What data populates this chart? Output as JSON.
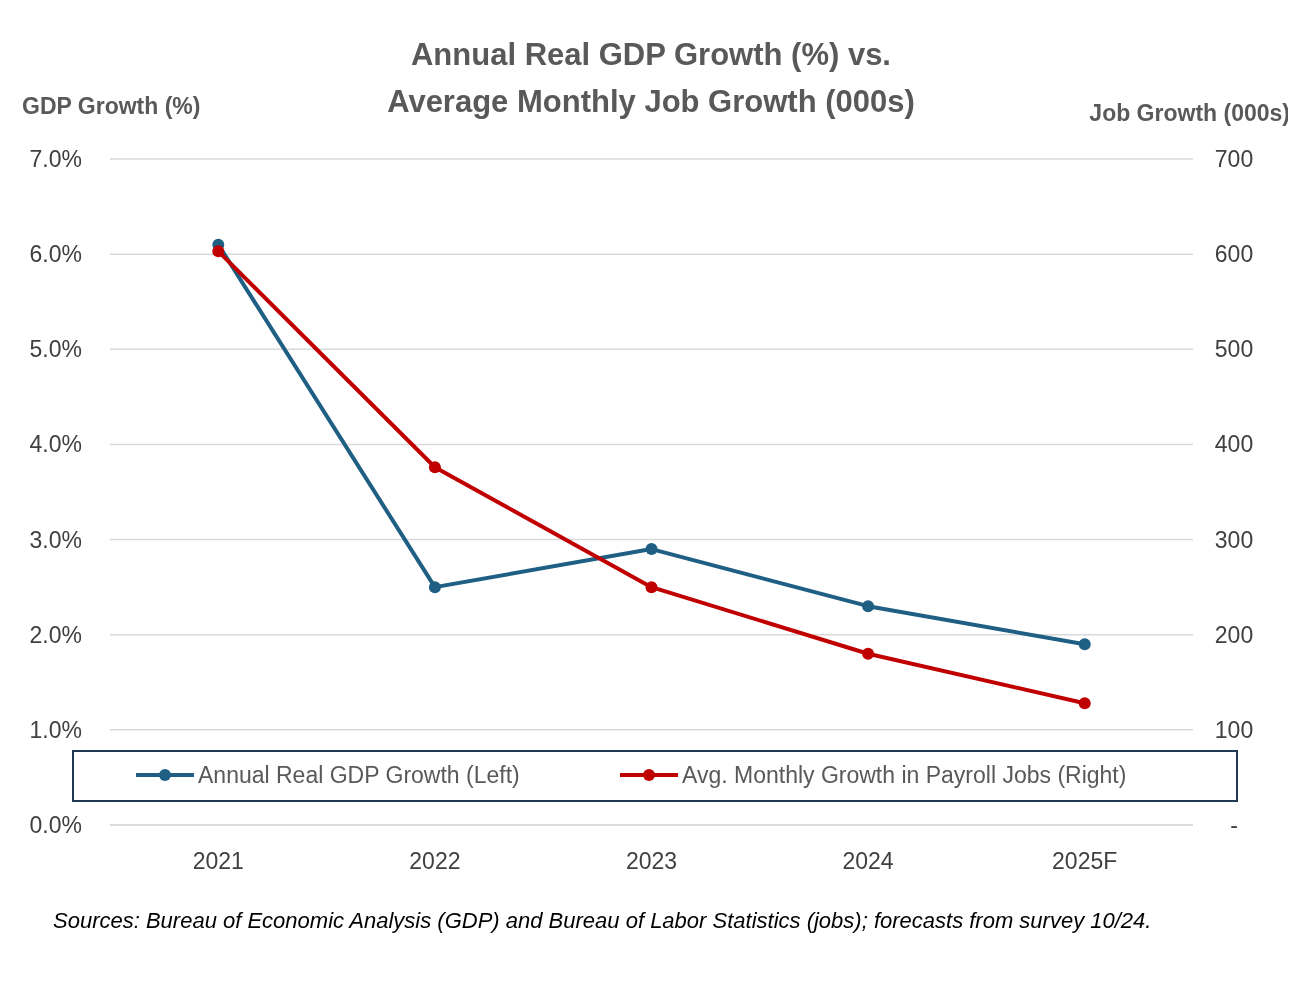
{
  "chart_data": {
    "type": "line",
    "title": "Annual Real GDP Growth (%) vs. Average Monthly Job Growth (000s)",
    "ylabel": "GDP Growth (%)",
    "y2label": "Job Growth (000s)",
    "categories": [
      "2021",
      "2022",
      "2023",
      "2024",
      "2025F"
    ],
    "series": [
      {
        "name": "Annual Real GDP Growth (Left)",
        "color": "#1f5f84",
        "values": [
          6.1,
          2.5,
          2.9,
          2.3,
          1.9
        ]
      },
      {
        "name": "Avg. Monthly Growth in Payroll Jobs (Right)",
        "color": "#c00000",
        "axis": "y2",
        "values": [
          603,
          376,
          250,
          180,
          128
        ]
      }
    ],
    "ylim": [
      0,
      7
    ],
    "yticks": [
      {
        "value": 0,
        "label": "0.0%"
      },
      {
        "value": 1,
        "label": "1.0%"
      },
      {
        "value": 2,
        "label": "2.0%"
      },
      {
        "value": 3,
        "label": "3.0%"
      },
      {
        "value": 4,
        "label": "4.0%"
      },
      {
        "value": 5,
        "label": "5.0%"
      },
      {
        "value": 6,
        "label": "6.0%"
      },
      {
        "value": 7,
        "label": "7.0%"
      }
    ],
    "y2lim": [
      0,
      700
    ],
    "y2ticks": [
      {
        "value": 0,
        "label": "-"
      },
      100,
      200,
      300,
      400,
      500,
      600,
      700
    ],
    "grid": "y",
    "legend": "bottom",
    "marker": "circle",
    "line_style": "solid",
    "annotations": [
      "Sources: Bureau of Economic Analysis (GDP) and Bureau of Labor Statistics (jobs); forecasts from survey 10/24."
    ]
  }
}
